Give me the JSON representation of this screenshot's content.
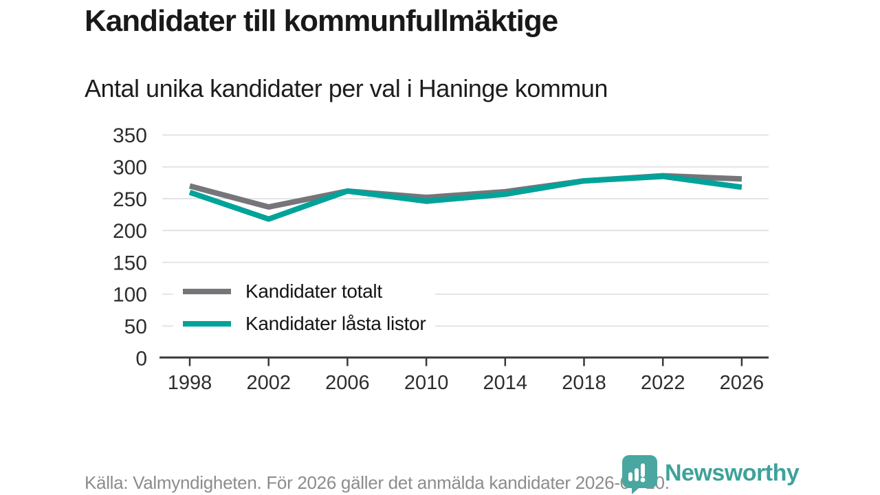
{
  "title": "Kandidater till kommunfullmäktige",
  "subtitle": "Antal unika kandidater per val i Haninge kommun",
  "footer": {
    "source_note": "Källa: Valmyndigheten. För 2026 gäller det anmälda kandidater 2026-04-10."
  },
  "logo": {
    "text": "Newsworthy"
  },
  "colors": {
    "series_total": "#75757a",
    "series_locked": "#00a39a",
    "grid": "#e4e4e4",
    "axis": "#383838",
    "tick_label": "#2e2e2e",
    "footer_text": "#8c8c8c",
    "logo_teal": "#3ea29b",
    "logo_bubble": "#4aa6a1"
  },
  "chart_data": {
    "type": "line",
    "x": [
      1998,
      2002,
      2006,
      2010,
      2014,
      2018,
      2022,
      2026
    ],
    "series": [
      {
        "name": "Kandidater totalt",
        "color": "#75757a",
        "values": [
          270,
          237,
          262,
          252,
          261,
          278,
          286,
          281
        ]
      },
      {
        "name": "Kandidater låsta listor",
        "color": "#00a39a",
        "values": [
          260,
          218,
          262,
          246,
          257,
          278,
          285,
          268
        ]
      }
    ],
    "title": "Kandidater till kommunfullmäktige",
    "subtitle": "Antal unika kandidater per val i Haninge kommun",
    "xlabel": "",
    "ylabel": "",
    "ylim": [
      0,
      350
    ],
    "yticks": [
      0,
      50,
      100,
      150,
      200,
      250,
      300,
      350
    ],
    "grid": "horizontal",
    "legend_position": "inside-left-bottom",
    "legend": [
      "Kandidater totalt",
      "Kandidater låsta listor"
    ]
  }
}
